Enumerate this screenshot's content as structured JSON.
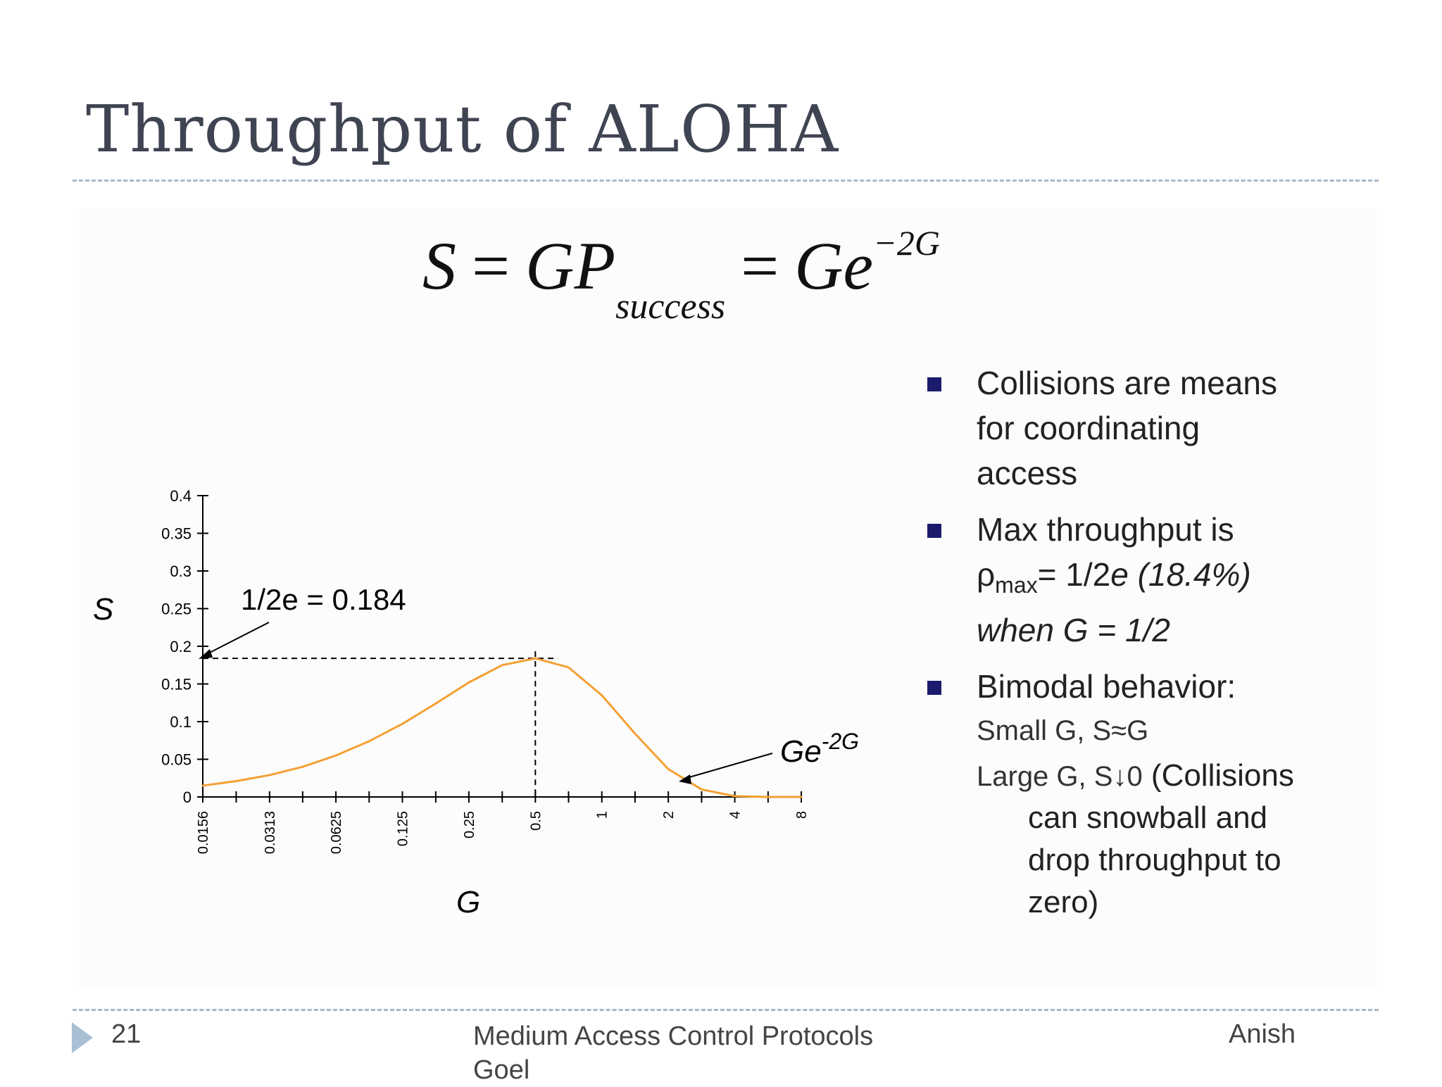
{
  "slide": {
    "title": "Throughput of ALOHA",
    "formula": {
      "s": "S",
      "eq": "=",
      "gp": "GP",
      "sub": "success",
      "ge": "Ge",
      "sup": "−2G"
    }
  },
  "bullets": {
    "b1": {
      "line1": "Collisions are means",
      "line2": "for coordinating",
      "line3": "access"
    },
    "b2": {
      "line1": "Max throughput is",
      "rho": "ρ",
      "rho_sub": "max",
      "rho_rest": "= 1/2",
      "e": "e",
      "pct": " (18.4%)",
      "when": "when G = 1/2"
    },
    "b3": {
      "line1": "Bimodal behavior:",
      "small": "Small G, S≈G",
      "large": "Large G, S↓0",
      "c1": " (Collisions",
      "c2": "can snowball and",
      "c3": "drop throughput to",
      "c4": "zero)"
    }
  },
  "footer": {
    "page": "21",
    "center": "Medium Access Control Protocols Goel",
    "right": "Anish"
  },
  "chart_data": {
    "type": "line",
    "xlabel": "G",
    "ylabel": "S",
    "x_scale": "log2",
    "x": [
      0.0156,
      0.0221,
      0.0313,
      0.0442,
      0.0625,
      0.0884,
      0.125,
      0.177,
      0.25,
      0.354,
      0.5,
      0.707,
      1,
      1.414,
      2,
      2.83,
      4,
      5.66,
      8
    ],
    "values": [
      0.015,
      0.021,
      0.029,
      0.04,
      0.055,
      0.074,
      0.097,
      0.124,
      0.152,
      0.175,
      0.184,
      0.172,
      0.135,
      0.084,
      0.037,
      0.01,
      0.001,
      0.0,
      0.0
    ],
    "x_ticks": [
      "0.0156",
      "0.0313",
      "0.0625",
      "0.125",
      "0.25",
      "0.5",
      "1",
      "2",
      "4",
      "8"
    ],
    "y_ticks": [
      "0",
      "0.05",
      "0.1",
      "0.15",
      "0.2",
      "0.25",
      "0.3",
      "0.35",
      "0.4"
    ],
    "ylim": [
      0,
      0.4
    ],
    "line_color": "#f5a034",
    "peak": {
      "x": 0.5,
      "y": 0.184
    },
    "annotations": {
      "peak_label": "1/2e = 0.184",
      "curve_label": "Ge",
      "curve_label_sup": "-2G"
    }
  }
}
